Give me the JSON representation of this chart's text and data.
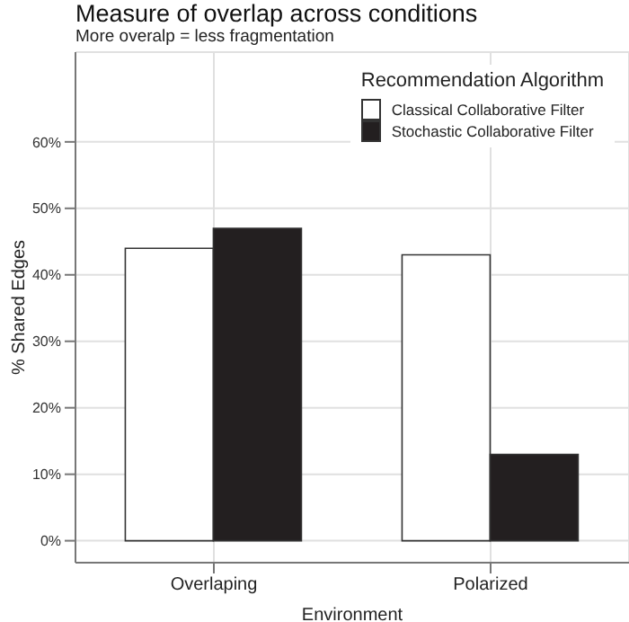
{
  "chart_data": {
    "type": "bar",
    "title": "Measure of overlap across conditions",
    "subtitle": "More overalp = less fragmentation",
    "xlabel": "Environment",
    "ylabel": "% Shared Edges",
    "legend_title": "Recommendation Algorithm",
    "categories": [
      "Overlaping",
      "Polarized"
    ],
    "series": [
      {
        "name": "Classical Collaborative Filter",
        "color": "#ffffff",
        "values": [
          44,
          43
        ]
      },
      {
        "name": "Stochastic Collaborative Filter",
        "color": "#231f20",
        "values": [
          47,
          13
        ]
      }
    ],
    "ylim": [
      -3.3,
      73.5
    ],
    "yticks": [
      {
        "value": 0,
        "label": "0%"
      },
      {
        "value": 10,
        "label": "10%"
      },
      {
        "value": 20,
        "label": "20%"
      },
      {
        "value": 30,
        "label": "30%"
      },
      {
        "value": 40,
        "label": "40%"
      },
      {
        "value": 50,
        "label": "50%"
      },
      {
        "value": 60,
        "label": "60%"
      }
    ],
    "grid": true,
    "legend": "top right"
  }
}
